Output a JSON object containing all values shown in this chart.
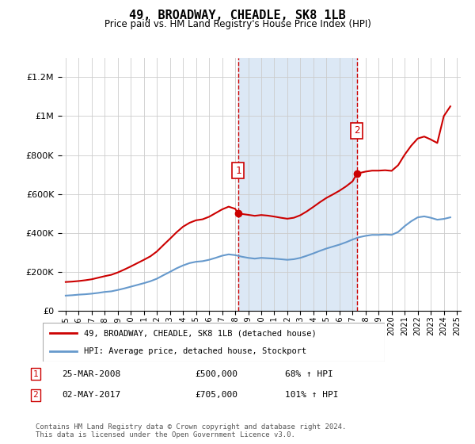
{
  "title": "49, BROADWAY, CHEADLE, SK8 1LB",
  "subtitle": "Price paid vs. HM Land Registry's House Price Index (HPI)",
  "ylim": [
    0,
    1300000
  ],
  "yticks": [
    0,
    200000,
    400000,
    600000,
    800000,
    1000000,
    1200000
  ],
  "shade_color": "#dce8f5",
  "red_line_color": "#cc0000",
  "blue_line_color": "#6699cc",
  "marker1_x": 2008.23,
  "marker2_x": 2017.34,
  "marker1_y": 500000,
  "marker2_y": 705000,
  "legend_label1": "49, BROADWAY, CHEADLE, SK8 1LB (detached house)",
  "legend_label2": "HPI: Average price, detached house, Stockport",
  "table_row1": [
    "1",
    "25-MAR-2008",
    "£500,000",
    "68% ↑ HPI"
  ],
  "table_row2": [
    "2",
    "02-MAY-2017",
    "£705,000",
    "101% ↑ HPI"
  ],
  "footnote": "Contains HM Land Registry data © Crown copyright and database right 2024.\nThis data is licensed under the Open Government Licence v3.0.",
  "xmin": 1995,
  "xmax": 2025,
  "hpi_years": [
    1995,
    1995.5,
    1996,
    1996.5,
    1997,
    1997.5,
    1998,
    1998.5,
    1999,
    1999.5,
    2000,
    2000.5,
    2001,
    2001.5,
    2002,
    2002.5,
    2003,
    2003.5,
    2004,
    2004.5,
    2005,
    2005.5,
    2006,
    2006.5,
    2007,
    2007.5,
    2008,
    2008.5,
    2009,
    2009.5,
    2010,
    2010.5,
    2011,
    2011.5,
    2012,
    2012.5,
    2013,
    2013.5,
    2014,
    2014.5,
    2015,
    2015.5,
    2016,
    2016.5,
    2017,
    2017.5,
    2018,
    2018.5,
    2019,
    2019.5,
    2020,
    2020.5,
    2021,
    2021.5,
    2022,
    2022.5,
    2023,
    2023.5,
    2024,
    2024.5
  ],
  "hpi_values": [
    78000,
    80000,
    83000,
    85000,
    88000,
    92000,
    97000,
    100000,
    107000,
    115000,
    124000,
    133000,
    142000,
    152000,
    165000,
    183000,
    200000,
    218000,
    233000,
    245000,
    252000,
    255000,
    262000,
    272000,
    283000,
    290000,
    286000,
    278000,
    272000,
    268000,
    272000,
    270000,
    268000,
    265000,
    262000,
    265000,
    272000,
    283000,
    295000,
    308000,
    320000,
    330000,
    340000,
    352000,
    366000,
    378000,
    385000,
    390000,
    390000,
    392000,
    390000,
    405000,
    435000,
    460000,
    480000,
    485000,
    478000,
    468000,
    472000,
    480000
  ],
  "red_years": [
    1995,
    1995.5,
    1996,
    1996.5,
    1997,
    1997.5,
    1998,
    1998.5,
    1999,
    1999.5,
    2000,
    2000.5,
    2001,
    2001.5,
    2002,
    2002.5,
    2003,
    2003.5,
    2004,
    2004.5,
    2005,
    2005.5,
    2006,
    2006.5,
    2007,
    2007.5,
    2008,
    2008.23,
    2009,
    2009.5,
    2010,
    2010.5,
    2011,
    2011.5,
    2012,
    2012.5,
    2013,
    2013.5,
    2014,
    2014.5,
    2015,
    2015.5,
    2016,
    2016.5,
    2017,
    2017.34,
    2018,
    2018.5,
    2019,
    2019.5,
    2020,
    2020.5,
    2021,
    2021.5,
    2022,
    2022.5,
    2023,
    2023.5,
    2024,
    2024.5
  ],
  "red_values": [
    148000,
    150000,
    153000,
    157000,
    162000,
    170000,
    178000,
    185000,
    197000,
    212000,
    228000,
    245000,
    262000,
    280000,
    305000,
    338000,
    370000,
    403000,
    432000,
    452000,
    465000,
    470000,
    483000,
    502000,
    521000,
    535000,
    524000,
    500000,
    493000,
    488000,
    492000,
    489000,
    484000,
    478000,
    473000,
    478000,
    491000,
    511000,
    534000,
    558000,
    580000,
    598000,
    617000,
    639000,
    665000,
    705000,
    715000,
    720000,
    720000,
    722000,
    719000,
    748000,
    802000,
    848000,
    885000,
    895000,
    880000,
    862000,
    1000000,
    1050000
  ]
}
